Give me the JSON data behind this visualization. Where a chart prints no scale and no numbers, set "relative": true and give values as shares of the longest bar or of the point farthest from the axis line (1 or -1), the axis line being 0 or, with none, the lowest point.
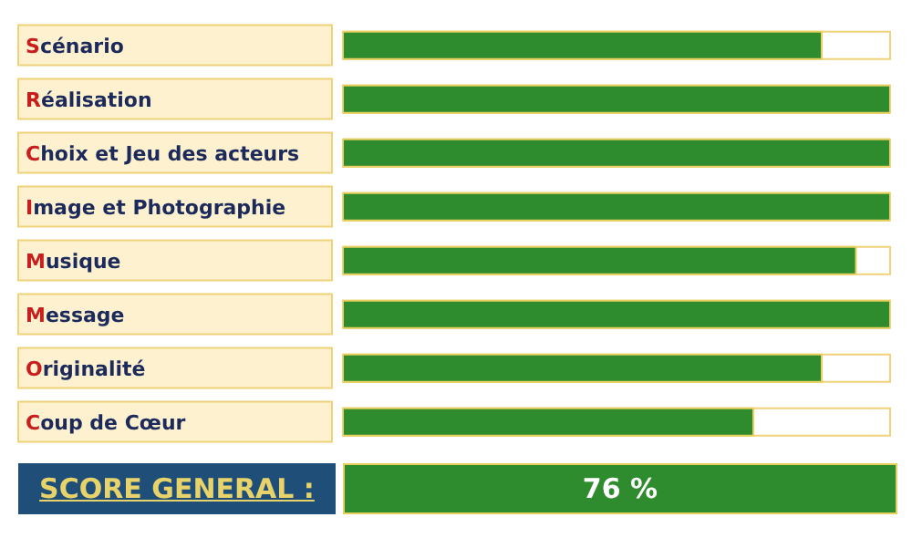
{
  "chart_data": {
    "type": "bar",
    "orientation": "horizontal",
    "relative": true,
    "categories": [
      "Scénario",
      "Réalisation",
      "Choix et Jeu des acteurs",
      "Image et Photographie",
      "Musique",
      "Message",
      "Originalité",
      "Coup de Cœur"
    ],
    "values": [
      0.875,
      1,
      1,
      1,
      0.9375,
      1,
      0.875,
      0.75
    ],
    "color": "#2e8b2e",
    "annotations": [
      "SCORE GENERAL :",
      "76 %"
    ],
    "grid": false,
    "legend": false
  }
}
